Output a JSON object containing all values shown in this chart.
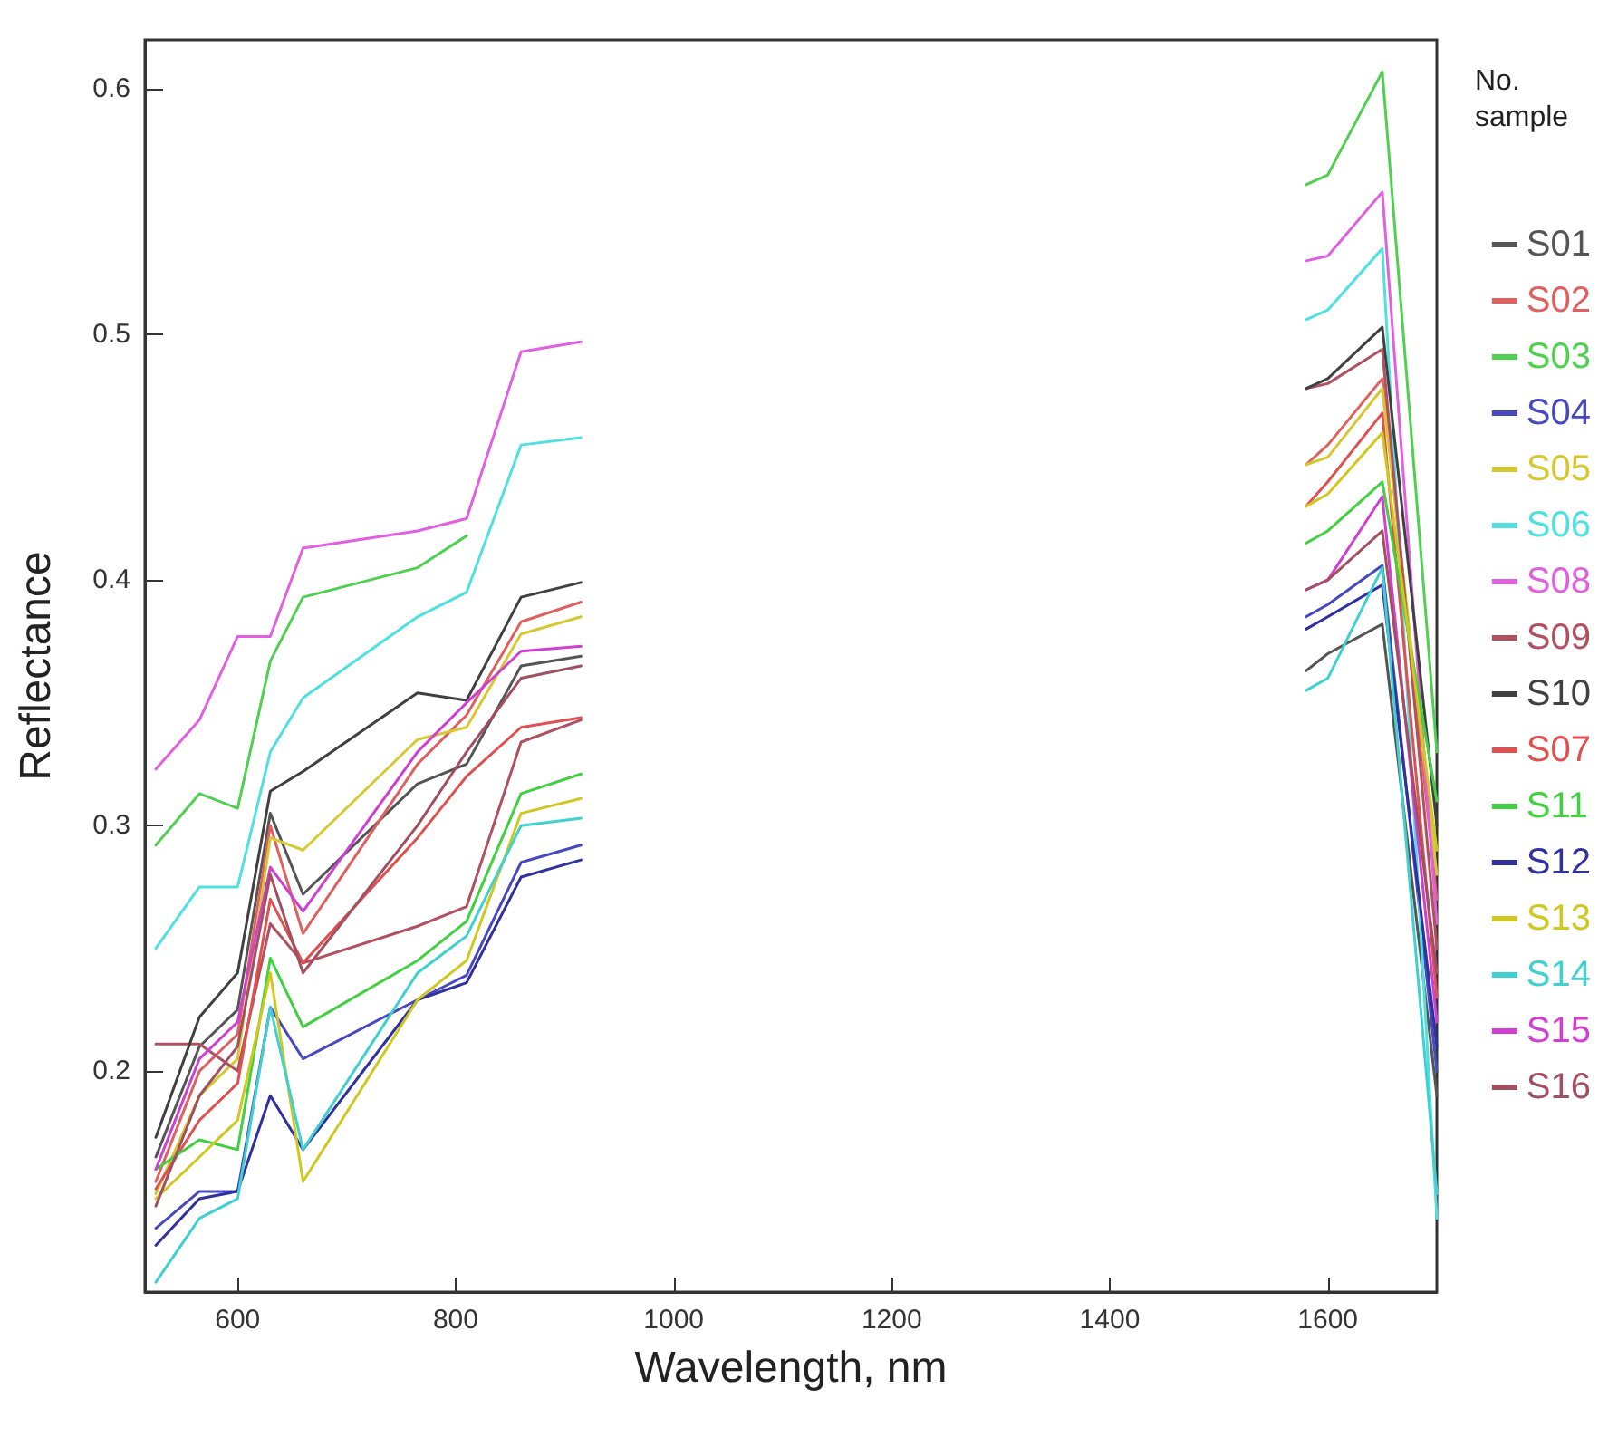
{
  "chart_data": {
    "type": "line",
    "xlabel": "Wavelength, nm",
    "ylabel": "Reflectance",
    "legend_title": "No. sample",
    "legend": "right",
    "grid": false,
    "marker": "none",
    "line_style": "solid",
    "x": [
      525,
      565,
      600,
      630,
      660,
      765,
      810,
      860,
      915,
      1200,
      1580,
      1600,
      1650,
      1700
    ],
    "xlim": [
      515,
      1700
    ],
    "xticks": [
      600,
      800,
      1000,
      1200,
      1400,
      1600
    ],
    "ylim": [
      0.11,
      0.62
    ],
    "yticks": [
      0.2,
      0.3,
      0.4,
      0.5,
      0.6
    ],
    "series": [
      {
        "name": "S01",
        "color": "#555555",
        "values": [
          0.165,
          0.21,
          0.225,
          0.305,
          0.272,
          0.317,
          0.325,
          0.365,
          0.369,
          null,
          0.363,
          0.37,
          0.382,
          0.19
        ]
      },
      {
        "name": "S02",
        "color": "#e06060",
        "values": [
          0.155,
          0.2,
          0.215,
          0.3,
          0.256,
          0.325,
          0.345,
          0.383,
          0.391,
          null,
          0.447,
          0.455,
          0.482,
          0.27
        ]
      },
      {
        "name": "S03",
        "color": "#50d050",
        "values": [
          0.292,
          0.313,
          0.307,
          0.367,
          0.393,
          0.405,
          0.418,
          null,
          null,
          null,
          0.561,
          0.565,
          0.607,
          0.33
        ]
      },
      {
        "name": "S04",
        "color": "#4848c0",
        "values": [
          0.136,
          0.151,
          0.151,
          0.226,
          0.205,
          0.229,
          0.239,
          0.285,
          0.292,
          null,
          0.385,
          0.39,
          0.406,
          0.2
        ]
      },
      {
        "name": "S05",
        "color": "#d6c830",
        "values": [
          0.15,
          0.19,
          0.205,
          0.295,
          0.29,
          0.335,
          0.34,
          0.378,
          0.385,
          null,
          0.447,
          0.45,
          0.478,
          0.28
        ]
      },
      {
        "name": "S06",
        "color": "#50e0e0",
        "values": [
          0.25,
          0.275,
          0.275,
          0.33,
          0.352,
          0.385,
          0.395,
          0.455,
          0.458,
          null,
          0.506,
          0.51,
          0.535,
          0.14
        ]
      },
      {
        "name": "S08",
        "color": "#e060e0",
        "values": [
          0.323,
          0.343,
          0.377,
          0.377,
          0.413,
          0.42,
          0.425,
          0.493,
          0.497,
          null,
          0.53,
          0.532,
          0.558,
          0.26
        ]
      },
      {
        "name": "S09",
        "color": "#b05060",
        "values": [
          0.211,
          0.211,
          0.2,
          0.26,
          0.244,
          0.259,
          0.267,
          0.334,
          0.343,
          null,
          0.478,
          0.48,
          0.494,
          0.25
        ]
      },
      {
        "name": "S10",
        "color": "#404040",
        "values": [
          0.173,
          0.222,
          0.24,
          0.314,
          0.322,
          0.354,
          0.351,
          0.393,
          0.399,
          null,
          0.478,
          0.482,
          0.503,
          0.3
        ]
      },
      {
        "name": "S07",
        "color": "#e05050",
        "values": [
          0.152,
          0.18,
          0.195,
          0.27,
          0.244,
          0.295,
          0.32,
          0.34,
          0.344,
          null,
          0.43,
          0.44,
          0.468,
          0.23
        ]
      },
      {
        "name": "S11",
        "color": "#40d040",
        "values": [
          0.16,
          0.172,
          0.168,
          0.246,
          0.218,
          0.245,
          0.261,
          0.313,
          0.321,
          null,
          0.415,
          0.42,
          0.44,
          0.31
        ]
      },
      {
        "name": "S12",
        "color": "#3030a0",
        "values": [
          0.129,
          0.148,
          0.151,
          0.19,
          0.168,
          0.229,
          0.236,
          0.279,
          0.286,
          null,
          0.38,
          0.385,
          0.398,
          0.21
        ]
      },
      {
        "name": "S13",
        "color": "#d0c820",
        "values": [
          0.148,
          0.165,
          0.18,
          0.24,
          0.155,
          0.229,
          0.245,
          0.305,
          0.311,
          null,
          0.43,
          0.435,
          0.46,
          0.29
        ]
      },
      {
        "name": "S14",
        "color": "#40d0d0",
        "values": [
          0.114,
          0.14,
          0.148,
          0.226,
          0.168,
          0.24,
          0.255,
          0.3,
          0.303,
          null,
          0.355,
          0.36,
          0.405,
          0.15
        ]
      },
      {
        "name": "S15",
        "color": "#d040d0",
        "values": [
          0.16,
          0.205,
          0.22,
          0.283,
          0.265,
          0.33,
          0.35,
          0.371,
          0.373,
          null,
          0.396,
          0.4,
          0.434,
          0.22
        ]
      },
      {
        "name": "S16",
        "color": "#a05060",
        "values": [
          0.145,
          0.19,
          0.21,
          0.28,
          0.24,
          0.3,
          0.33,
          0.36,
          0.365,
          null,
          0.396,
          0.4,
          0.42,
          0.24
        ]
      }
    ]
  }
}
